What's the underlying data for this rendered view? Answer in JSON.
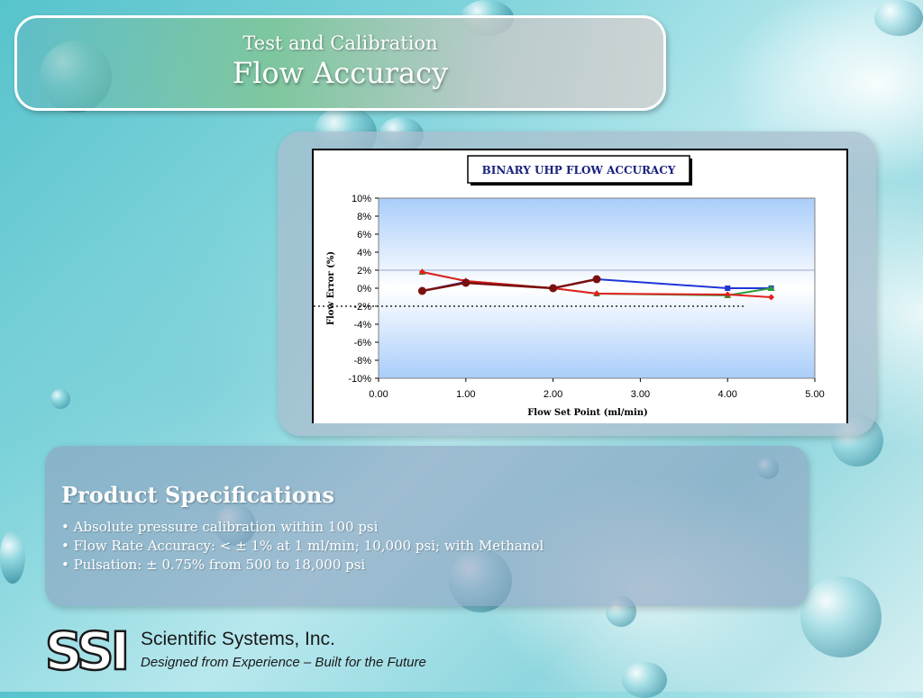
{
  "header": {
    "subtitle": "Test and Calibration",
    "title": "Flow Accuracy"
  },
  "chart_data": {
    "type": "line",
    "title": "BINARY UHP FLOW ACCURACY",
    "xlabel": "Flow Set Point (ml/min)",
    "ylabel": "Flow Error (%)",
    "xlim": [
      0,
      5
    ],
    "ylim": [
      -10,
      10
    ],
    "x_ticks": [
      0,
      1,
      2,
      3,
      4,
      5
    ],
    "x_tick_labels": [
      "0.00",
      "1.00",
      "2.00",
      "3.00",
      "4.00",
      "5.00"
    ],
    "y_ticks": [
      10,
      8,
      6,
      4,
      2,
      0,
      -2,
      -4,
      -6,
      -8,
      -10
    ],
    "y_tick_labels": [
      "10%",
      "8%",
      "6%",
      "4%",
      "2%",
      "0%",
      "-2%",
      "-4%",
      "-6%",
      "-8%",
      "-10%"
    ],
    "reference_lines": [
      {
        "y": 2,
        "style": "solid",
        "color": "#9aa6c8"
      },
      {
        "y": -2,
        "style": "dotted",
        "color": "#000000"
      }
    ],
    "series": [
      {
        "color": "#1f36d8",
        "marker": "square",
        "x": [
          0.5,
          1.0,
          2.0,
          2.5,
          4.0,
          4.5
        ],
        "y": [
          -0.3,
          0.7,
          0.0,
          1.0,
          0.0,
          0.0
        ]
      },
      {
        "color": "#2e9a3a",
        "marker": "triangle",
        "x": [
          0.5,
          1.0,
          2.0,
          2.5,
          4.0,
          4.5
        ],
        "y": [
          1.8,
          0.8,
          0.0,
          -0.6,
          -0.8,
          0.0
        ]
      },
      {
        "color": "#e32020",
        "marker": "diamond",
        "x": [
          0.5,
          1.0,
          2.0,
          2.5,
          4.0,
          4.5
        ],
        "y": [
          1.8,
          0.8,
          0.0,
          -0.6,
          -0.7,
          -1.0
        ]
      },
      {
        "color": "#7a1010",
        "marker": "circle",
        "x": [
          0.5,
          1.0,
          2.0,
          2.5
        ],
        "y": [
          -0.3,
          0.6,
          0.0,
          1.0
        ]
      }
    ],
    "plot_background": [
      "#a9cdfa",
      "#ffffff",
      "#a9cdfa"
    ]
  },
  "specs": {
    "heading": "Product Specifications",
    "items": [
      "• Absolute pressure calibration within 100 psi",
      "• Flow Rate Accuracy:  < ± 1% at 1 ml/min; 10,000 psi; with Methanol",
      "• Pulsation:  ± 0.75% from 500 to 18,000 psi"
    ]
  },
  "footer": {
    "logo_text": "SSI",
    "company": "Scientific Systems, Inc.",
    "tagline": "Designed from Experience – Built for the Future"
  }
}
